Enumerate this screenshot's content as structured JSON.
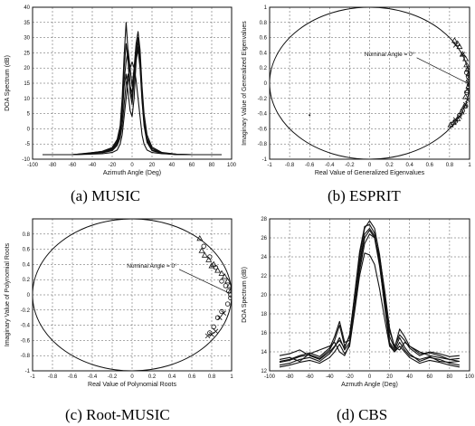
{
  "chart_data": [
    {
      "id": "music",
      "type": "line",
      "caption": "(a)  MUSIC",
      "xlabel": "Azimuth Angle (Deg)",
      "ylabel": "DOA Spectrum (dB)",
      "xlim": [
        -100,
        100
      ],
      "ylim": [
        -10,
        40
      ],
      "xticks": [
        -100,
        -80,
        -60,
        -40,
        -20,
        0,
        20,
        40,
        60,
        80,
        100
      ],
      "yticks": [
        -10,
        -5,
        0,
        5,
        10,
        15,
        20,
        25,
        30,
        35,
        40
      ],
      "grid": true,
      "series": [
        {
          "x": [
            -90,
            -60,
            -45,
            -30,
            -20,
            -15,
            -12,
            -10,
            -8,
            -6,
            -4,
            -2,
            0,
            2,
            4,
            6,
            8,
            10,
            12,
            15,
            20,
            30,
            45,
            60,
            90
          ],
          "y": [
            -8.5,
            -8.5,
            -8.3,
            -7.8,
            -7,
            -5,
            -2,
            4,
            14,
            18,
            12,
            6,
            4,
            10,
            22,
            27,
            21,
            10,
            2,
            -4,
            -7,
            -8,
            -8.5,
            -8.5,
            -8.5
          ]
        },
        {
          "x": [
            -90,
            -60,
            -45,
            -30,
            -20,
            -15,
            -12,
            -10,
            -8,
            -6,
            -4,
            -2,
            0,
            2,
            4,
            6,
            8,
            10,
            12,
            15,
            20,
            30,
            45,
            60,
            90
          ],
          "y": [
            -8.5,
            -8.5,
            -8,
            -7.5,
            -6.5,
            -4,
            0,
            8,
            20,
            28,
            22,
            12,
            8,
            16,
            26,
            30,
            24,
            12,
            3,
            -3,
            -6.5,
            -8,
            -8.5,
            -8.5,
            -8.5
          ]
        },
        {
          "x": [
            -90,
            -60,
            -45,
            -30,
            -20,
            -15,
            -12,
            -10,
            -8,
            -6,
            -4,
            -2,
            0,
            2,
            4,
            6,
            8,
            10,
            12,
            15,
            20,
            30,
            45,
            60,
            90
          ],
          "y": [
            -8.5,
            -8.5,
            -8.2,
            -7.6,
            -6.8,
            -4.5,
            -1,
            6,
            16,
            22,
            26,
            20,
            14,
            20,
            28,
            32,
            26,
            14,
            5,
            -2,
            -6,
            -7.8,
            -8.4,
            -8.5,
            -8.5
          ]
        },
        {
          "x": [
            -90,
            -60,
            -45,
            -30,
            -20,
            -15,
            -12,
            -10,
            -8,
            -6,
            -4,
            -2,
            0,
            2,
            4,
            6,
            8,
            10,
            12,
            15,
            20,
            30,
            45,
            60,
            90
          ],
          "y": [
            -8.5,
            -8.5,
            -8.1,
            -7.4,
            -6.2,
            -3.5,
            1,
            10,
            24,
            35,
            25,
            14,
            10,
            18,
            24,
            29,
            22,
            11,
            2,
            -3.5,
            -6.5,
            -7.9,
            -8.4,
            -8.5,
            -8.5
          ]
        },
        {
          "x": [
            -90,
            -60,
            -45,
            -30,
            -20,
            -15,
            -12,
            -10,
            -8,
            -6,
            -4,
            -2,
            0,
            2,
            4,
            6,
            8,
            10,
            12,
            15,
            20,
            30,
            45,
            60,
            90
          ],
          "y": [
            -8.5,
            -8.5,
            -8.3,
            -7.9,
            -7.2,
            -5.5,
            -3,
            1,
            8,
            15,
            18,
            14,
            12,
            17,
            23,
            26,
            20,
            9,
            1,
            -4.5,
            -7.2,
            -8.1,
            -8.5,
            -8.5,
            -8.5
          ]
        },
        {
          "x": [
            -90,
            -60,
            -45,
            -30,
            -20,
            -15,
            -12,
            -10,
            -8,
            -6,
            -4,
            -2,
            0,
            2,
            4,
            6,
            8,
            10,
            12,
            15,
            20,
            30,
            45,
            60,
            90
          ],
          "y": [
            -8.5,
            -8.5,
            -8.4,
            -8.2,
            -7.8,
            -7,
            -5,
            -2,
            4,
            10,
            16,
            20,
            22,
            20,
            16,
            10,
            4,
            -2,
            -5,
            -7,
            -7.8,
            -8.2,
            -8.4,
            -8.5,
            -8.5
          ]
        }
      ]
    },
    {
      "id": "esprit",
      "type": "scatter",
      "caption": "(b)  ESPRIT",
      "xlabel": "Real Value of Generalized Eigenvalues",
      "ylabel": "Imaginary Value of Generalized Eigenvalues",
      "xlim": [
        -1,
        1
      ],
      "ylim": [
        -1,
        1
      ],
      "xticks": [
        -1,
        -0.8,
        -0.6,
        -0.4,
        -0.2,
        0,
        0.2,
        0.4,
        0.6,
        0.8,
        1
      ],
      "yticks": [
        -1,
        -0.8,
        -0.6,
        -0.4,
        -0.2,
        0,
        0.2,
        0.4,
        0.6,
        0.8,
        1
      ],
      "grid": true,
      "unit_circle": true,
      "annotation": "Nominal Angle = 0°",
      "annotation_target": [
        0.98,
        0.0
      ],
      "triangles": [
        [
          0.85,
          0.56
        ],
        [
          0.88,
          0.52
        ],
        [
          0.9,
          0.48
        ],
        [
          0.93,
          0.38
        ],
        [
          0.96,
          0.32
        ],
        [
          0.97,
          0.24
        ],
        [
          0.98,
          0.18
        ],
        [
          0.99,
          0.12
        ],
        [
          0.99,
          0.05
        ],
        [
          1.0,
          0.0
        ],
        [
          0.99,
          -0.04
        ],
        [
          0.98,
          -0.1
        ],
        [
          0.96,
          -0.18
        ],
        [
          0.95,
          -0.3
        ],
        [
          0.92,
          -0.38
        ],
        [
          0.88,
          -0.47
        ],
        [
          0.84,
          -0.52
        ],
        [
          0.81,
          -0.55
        ]
      ],
      "circles": [
        [
          0.97,
          0.14
        ],
        [
          0.99,
          0.08
        ],
        [
          1.0,
          0.02
        ],
        [
          1.0,
          -0.02
        ],
        [
          0.99,
          -0.06
        ],
        [
          0.97,
          -0.12
        ],
        [
          0.96,
          -0.3
        ],
        [
          0.93,
          -0.36
        ],
        [
          0.9,
          -0.42
        ],
        [
          0.86,
          -0.5
        ],
        [
          0.82,
          -0.54
        ]
      ],
      "crosses": [
        [
          0.93,
          0.38
        ],
        [
          0.86,
          0.5
        ],
        [
          0.98,
          -0.22
        ],
        [
          0.96,
          -0.28
        ],
        [
          0.9,
          -0.44
        ],
        [
          0.86,
          -0.48
        ]
      ],
      "points": [
        [
          -0.6,
          -0.42
        ]
      ]
    },
    {
      "id": "root-music",
      "type": "scatter",
      "caption": "(c)  Root-MUSIC",
      "xlabel": "Real Value of Polynomial Roots",
      "ylabel": "Imaginary Value of Polynomial Roots",
      "xlim": [
        -1,
        1
      ],
      "ylim": [
        -1,
        1
      ],
      "xticks": [
        -1,
        -0.8,
        -0.6,
        -0.4,
        -0.2,
        0,
        0.2,
        0.4,
        0.6,
        0.8,
        1
      ],
      "yticks": [
        -1,
        -0.8,
        -0.6,
        -0.4,
        -0.2,
        0,
        0.2,
        0.4,
        0.6,
        0.8
      ],
      "grid": true,
      "unit_circle": true,
      "annotation": "Nominal Angle = 0°",
      "annotation_target": [
        0.98,
        0.02
      ],
      "triangles": [
        [
          0.68,
          0.74
        ],
        [
          0.7,
          0.58
        ],
        [
          0.73,
          0.52
        ],
        [
          0.77,
          0.46
        ],
        [
          0.8,
          0.38
        ],
        [
          0.82,
          0.4
        ],
        [
          0.86,
          0.32
        ],
        [
          0.9,
          0.28
        ],
        [
          0.93,
          0.24
        ],
        [
          0.96,
          0.18
        ],
        [
          0.98,
          0.12
        ],
        [
          0.99,
          0.05
        ]
      ],
      "circles": [
        [
          0.72,
          0.64
        ],
        [
          0.78,
          0.5
        ],
        [
          0.84,
          0.36
        ],
        [
          0.9,
          0.18
        ],
        [
          0.94,
          0.12
        ],
        [
          0.97,
          0.05
        ],
        [
          0.99,
          0.0
        ],
        [
          0.99,
          -0.04
        ],
        [
          0.96,
          -0.12
        ],
        [
          0.9,
          -0.22
        ],
        [
          0.86,
          -0.3
        ],
        [
          0.82,
          -0.42
        ],
        [
          0.78,
          -0.5
        ]
      ],
      "crosses": [
        [
          0.84,
          -0.48
        ],
        [
          0.8,
          -0.52
        ],
        [
          0.76,
          -0.54
        ],
        [
          0.88,
          -0.3
        ],
        [
          0.92,
          -0.24
        ]
      ]
    },
    {
      "id": "cbs",
      "type": "line",
      "caption": "(d)  CBS",
      "xlabel": "Azmuth Angle (Deg)",
      "ylabel": "DOA Spectrum (dB)",
      "xlim": [
        -100,
        100
      ],
      "ylim": [
        12,
        28
      ],
      "xticks": [
        -100,
        -80,
        -60,
        -40,
        -20,
        0,
        20,
        40,
        60,
        80,
        100
      ],
      "yticks": [
        12,
        14,
        16,
        18,
        20,
        22,
        24,
        26,
        28
      ],
      "grid": true,
      "series": [
        {
          "x": [
            -90,
            -80,
            -70,
            -60,
            -50,
            -40,
            -35,
            -30,
            -25,
            -20,
            -15,
            -10,
            -5,
            0,
            5,
            10,
            15,
            20,
            25,
            30,
            35,
            40,
            50,
            60,
            70,
            80,
            90
          ],
          "y": [
            12.6,
            12.8,
            13.2,
            13.4,
            13.0,
            13.8,
            14.5,
            15.5,
            14.2,
            15.0,
            19.0,
            23.0,
            26.0,
            26.8,
            26.0,
            23.0,
            19.0,
            15.0,
            14.2,
            15.5,
            14.5,
            13.8,
            13.0,
            13.4,
            13.2,
            12.8,
            12.6
          ]
        },
        {
          "x": [
            -90,
            -80,
            -70,
            -60,
            -50,
            -40,
            -35,
            -30,
            -25,
            -20,
            -15,
            -10,
            -5,
            0,
            5,
            10,
            15,
            20,
            25,
            30,
            35,
            40,
            50,
            60,
            70,
            80,
            90
          ],
          "y": [
            12.9,
            13.1,
            13.5,
            13.7,
            13.3,
            14.2,
            15.2,
            16.8,
            14.6,
            15.6,
            20.0,
            24.5,
            27.2,
            27.4,
            26.5,
            23.2,
            18.8,
            14.8,
            14.0,
            15.0,
            14.2,
            13.6,
            13.2,
            13.5,
            13.0,
            12.9,
            13.0
          ]
        },
        {
          "x": [
            -90,
            -80,
            -70,
            -60,
            -50,
            -40,
            -35,
            -30,
            -25,
            -20,
            -15,
            -10,
            -5,
            0,
            5,
            10,
            15,
            20,
            25,
            30,
            35,
            40,
            50,
            60,
            70,
            80,
            90
          ],
          "y": [
            13.2,
            13.4,
            13.0,
            13.8,
            14.2,
            14.6,
            15.0,
            14.0,
            13.6,
            14.8,
            18.5,
            22.5,
            25.4,
            26.4,
            26.0,
            24.0,
            20.5,
            16.5,
            14.5,
            14.2,
            15.0,
            14.6,
            14.0,
            13.6,
            13.4,
            13.2,
            13.3
          ]
        },
        {
          "x": [
            -90,
            -80,
            -70,
            -60,
            -50,
            -40,
            -35,
            -30,
            -25,
            -20,
            -15,
            -10,
            -5,
            0,
            5,
            10,
            15,
            20,
            25,
            30,
            35,
            40,
            50,
            60,
            70,
            80,
            90
          ],
          "y": [
            12.4,
            12.6,
            12.9,
            13.1,
            12.8,
            13.4,
            14.0,
            14.8,
            13.8,
            14.6,
            18.2,
            22.0,
            24.4,
            24.2,
            23.2,
            20.6,
            17.5,
            14.6,
            14.0,
            14.6,
            14.0,
            13.4,
            12.8,
            13.1,
            12.9,
            12.6,
            12.4
          ]
        },
        {
          "x": [
            -90,
            -80,
            -70,
            -60,
            -50,
            -40,
            -35,
            -30,
            -25,
            -20,
            -15,
            -10,
            -5,
            0,
            5,
            10,
            15,
            20,
            25,
            30,
            35,
            40,
            50,
            60,
            70,
            80,
            90
          ],
          "y": [
            13.6,
            13.8,
            14.2,
            13.6,
            13.2,
            14.0,
            14.6,
            15.2,
            14.4,
            15.8,
            19.8,
            24.0,
            27.0,
            27.8,
            27.0,
            24.2,
            20.2,
            16.2,
            14.6,
            15.8,
            15.2,
            14.4,
            13.6,
            14.0,
            13.8,
            13.5,
            13.6
          ]
        },
        {
          "x": [
            -90,
            -80,
            -70,
            -60,
            -50,
            -40,
            -35,
            -30,
            -25,
            -20,
            -15,
            -10,
            -5,
            0,
            5,
            10,
            15,
            20,
            25,
            30,
            35,
            40,
            50,
            60,
            70,
            80,
            90
          ],
          "y": [
            13.0,
            13.2,
            13.6,
            13.9,
            13.5,
            14.4,
            15.6,
            17.2,
            15.0,
            15.2,
            18.8,
            23.4,
            26.4,
            27.0,
            26.2,
            23.6,
            19.6,
            15.6,
            14.4,
            16.4,
            15.6,
            14.6,
            13.8,
            13.9,
            13.6,
            13.2,
            13.0
          ]
        }
      ]
    }
  ]
}
